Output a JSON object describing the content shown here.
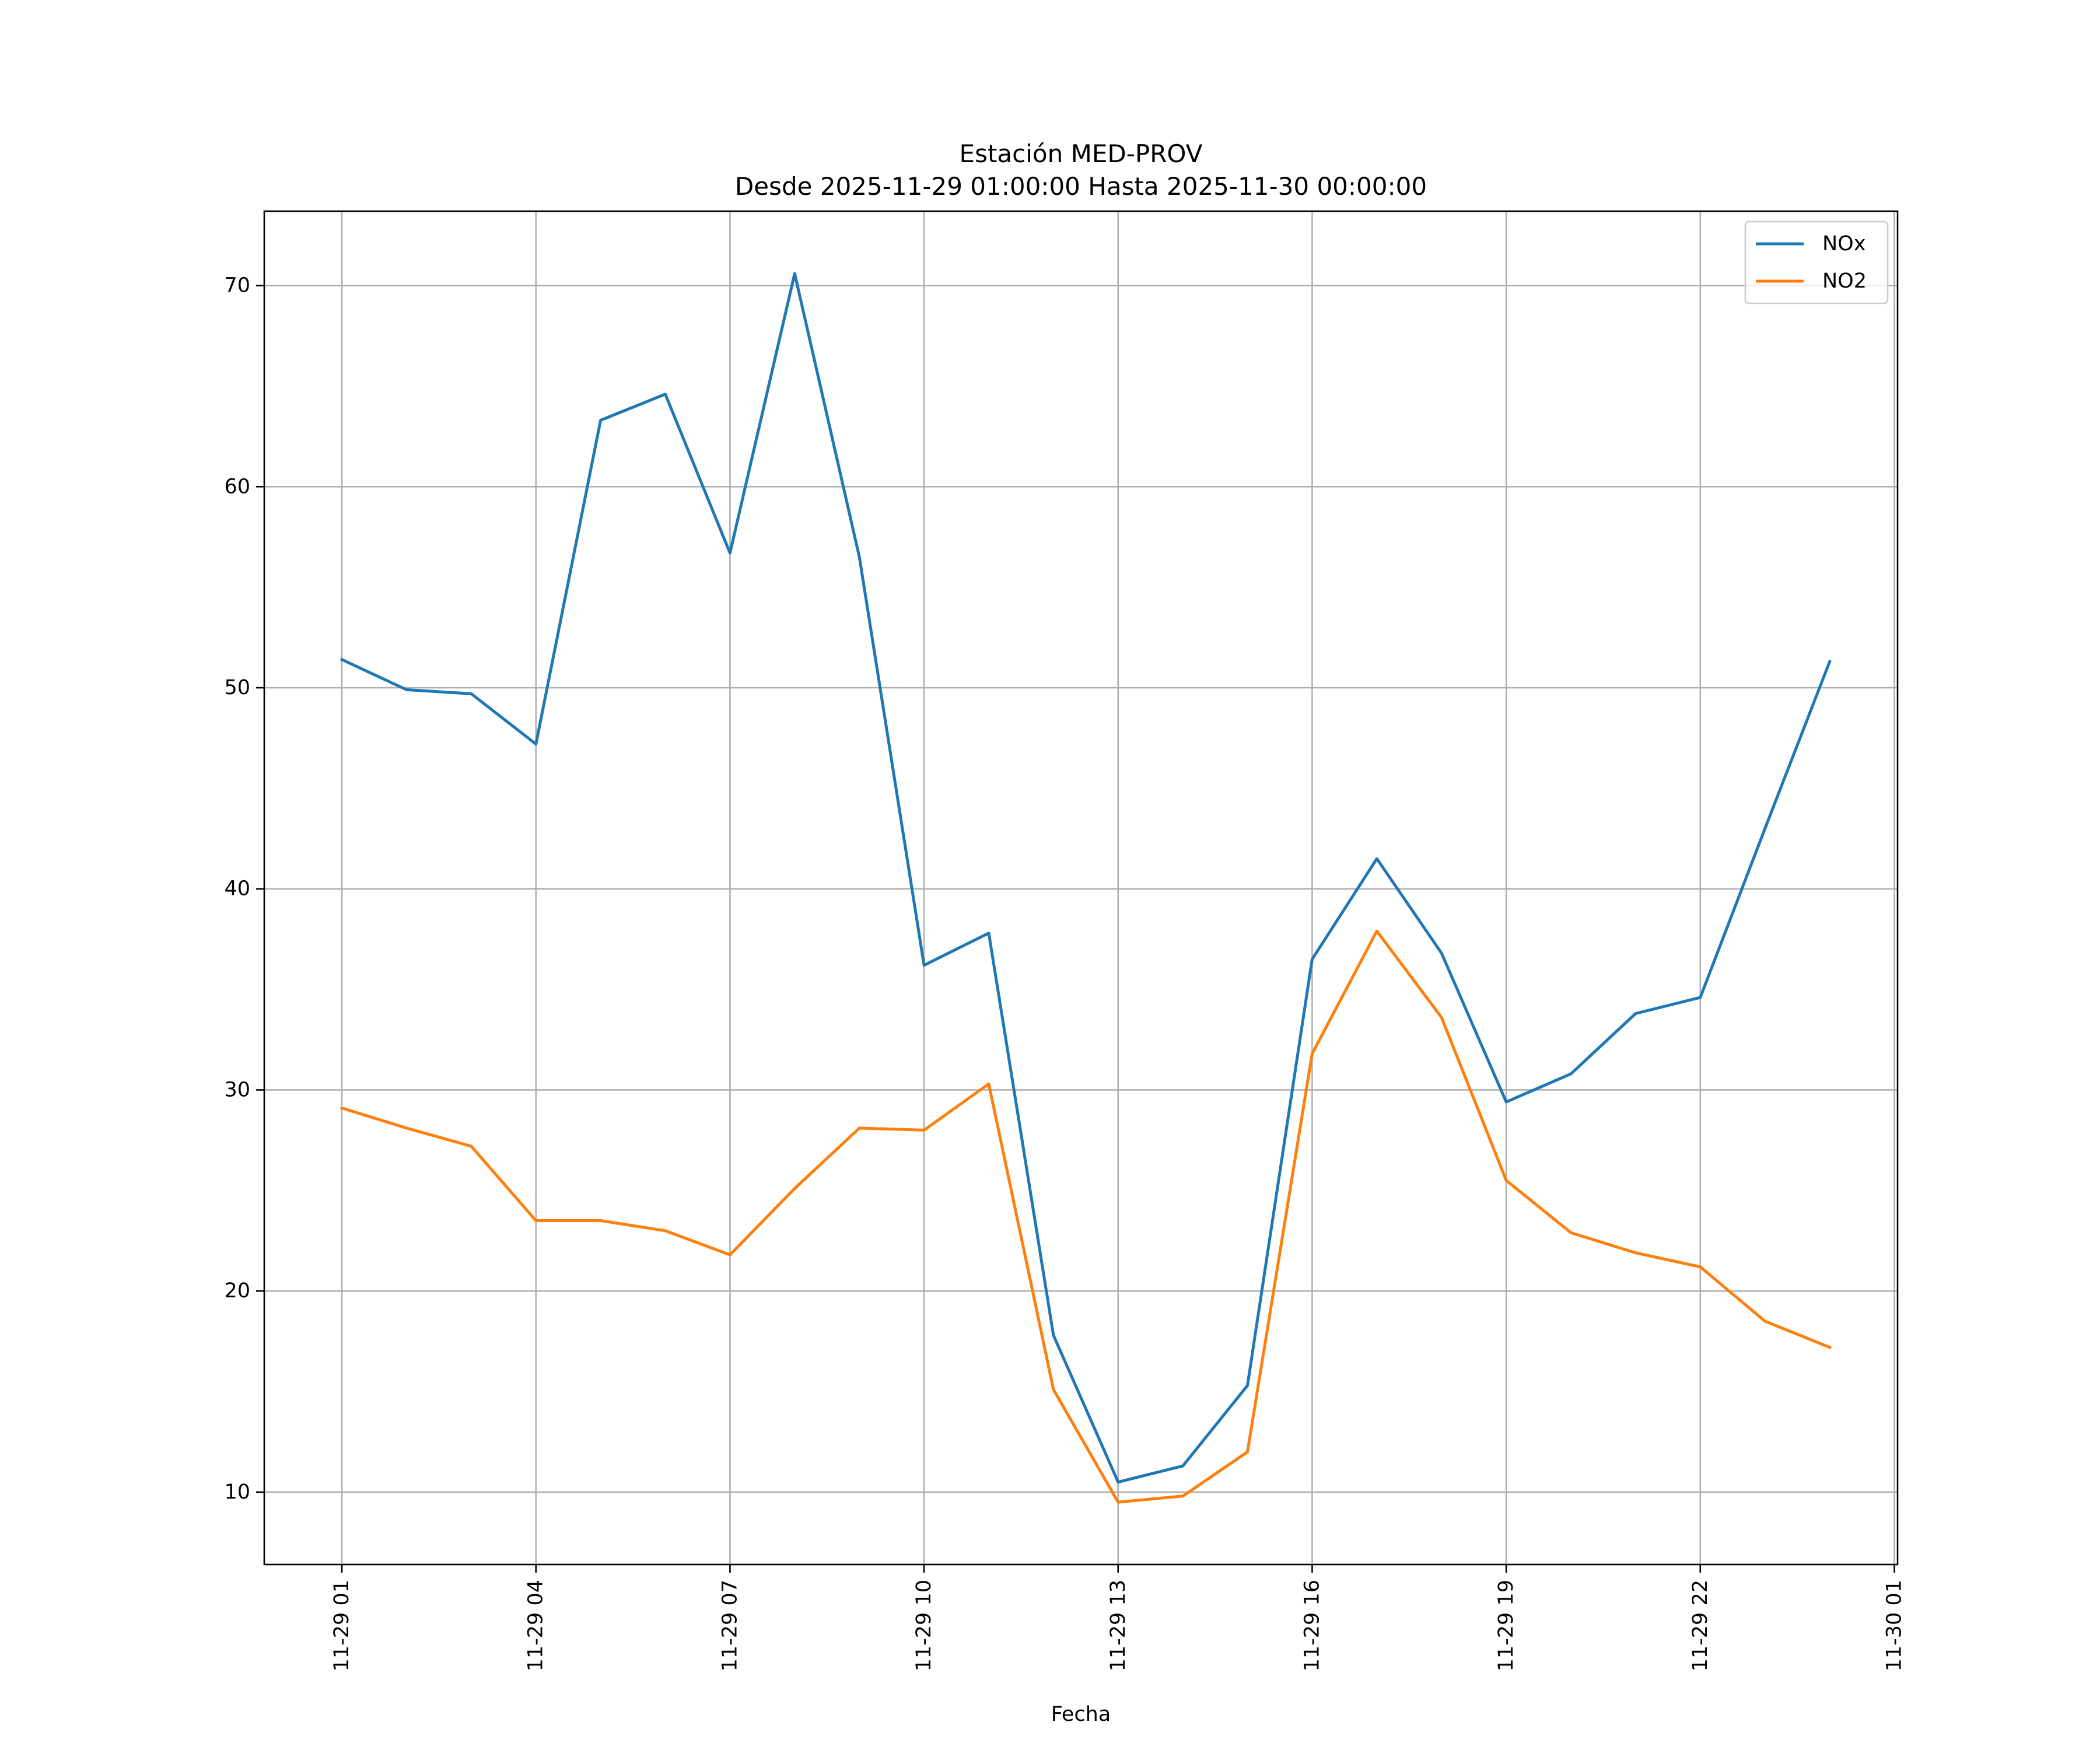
{
  "chart_data": {
    "type": "line",
    "title": "Estación MED-PROV",
    "subtitle": "Desde 2025-11-29 01:00:00 Hasta 2025-11-30 00:00:00",
    "xlabel": "Fecha",
    "ylabel": "",
    "grid": true,
    "legend_position": "top-right",
    "x_unit": "hours since 2025-11-29 00:00",
    "xlim": [
      -0.2,
      25.05
    ],
    "ylim": [
      6.4,
      73.7
    ],
    "x_ticks": [
      1,
      4,
      7,
      10,
      13,
      16,
      19,
      22,
      25
    ],
    "x_tick_labels": [
      "11-29 01",
      "11-29 04",
      "11-29 07",
      "11-29 10",
      "11-29 13",
      "11-29 16",
      "11-29 19",
      "11-29 22",
      "11-30 01"
    ],
    "y_ticks": [
      10,
      20,
      30,
      40,
      50,
      60,
      70
    ],
    "y_tick_labels": [
      "10",
      "20",
      "30",
      "40",
      "50",
      "60",
      "70"
    ],
    "x": [
      1,
      2,
      3,
      4,
      5,
      6,
      7,
      8,
      9,
      10,
      11,
      12,
      13,
      14,
      15,
      16,
      17,
      18,
      19,
      20,
      21,
      22,
      23,
      24
    ],
    "series": [
      {
        "name": "NOx",
        "color": "#1f77b4",
        "values": [
          51.4,
          49.9,
          49.7,
          47.2,
          63.3,
          64.6,
          56.7,
          70.6,
          56.5,
          36.2,
          37.8,
          17.8,
          10.5,
          11.3,
          15.3,
          36.5,
          41.5,
          36.8,
          29.4,
          30.8,
          33.8,
          34.6,
          43.0,
          51.3
        ]
      },
      {
        "name": "NO2",
        "color": "#ff7f0e",
        "values": [
          29.1,
          28.1,
          27.2,
          23.5,
          23.5,
          23.0,
          21.8,
          25.1,
          28.1,
          28.0,
          30.3,
          15.1,
          9.5,
          9.8,
          12.0,
          31.8,
          37.9,
          33.6,
          25.5,
          22.9,
          21.9,
          21.2,
          18.5,
          17.2
        ]
      }
    ]
  }
}
